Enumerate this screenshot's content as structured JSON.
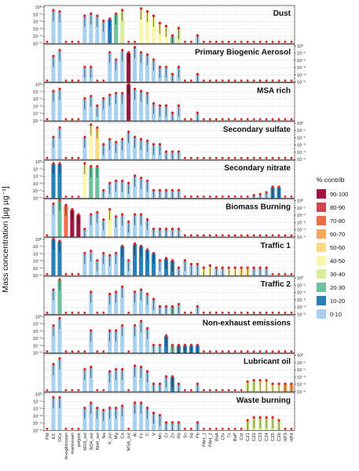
{
  "chart_data": {
    "type": "bar",
    "ylabel": "Mass concentration [µg µg⁻¹]",
    "yscale": "log",
    "ylim": [
      1e-05,
      1
    ],
    "y_ticks": [
      "10⁻⁵",
      "10⁻⁴",
      "10⁻³",
      "10⁻²",
      "10⁻¹",
      "10⁰"
    ],
    "categories": [
      "PM",
      "EC",
      "OCx",
      "levoglucosan",
      "mannosan",
      "polyols",
      "NO3_sol",
      "SO4_sol",
      "NH4_sol",
      "Na",
      "K_sol",
      "Mg",
      "Ca",
      "MSA_sol",
      "Al",
      "Fe",
      "Ti",
      "V",
      "Mn",
      "Cr",
      "Zn",
      "Rb",
      "Sn",
      "Sb",
      "Pb",
      "PAH_1",
      "PAH_2",
      "BaA",
      "Chr",
      "Tri",
      "BaP",
      "Cor",
      "C21",
      "C22",
      "C23",
      "C24",
      "C25",
      "C26",
      "HP3",
      "HP4"
    ],
    "x_tick_labels_shown": [
      "PM",
      "EC",
      "OCx",
      "levoglucosan",
      "mannosan",
      "polyols",
      "NO3_sol",
      "SO4_sol",
      "NH4_sol",
      "Na",
      "K_sol",
      "Mg",
      "Ca",
      "MSA_sol",
      "Al",
      "Fe",
      "Ti",
      "V",
      "Mn",
      "Cr",
      "Zn",
      "Rb",
      "Sn",
      "Sb",
      "Pb",
      "PAH_1",
      "PAH_2",
      "BaA",
      "Chr",
      "Tri",
      "BaP",
      "Cor",
      "C21",
      "C22",
      "C23",
      "C24",
      "C25",
      "C26",
      "HP3",
      "HP4"
    ],
    "legend": {
      "title": "% contrib",
      "position": "right",
      "items": [
        {
          "label": "90-100",
          "color": "#a2123f"
        },
        {
          "label": "80-90",
          "color": "#d6404c"
        },
        {
          "label": "70-80",
          "color": "#f26d48"
        },
        {
          "label": "60-70",
          "color": "#fba85e"
        },
        {
          "label": "50-60",
          "color": "#fdd98a"
        },
        {
          "label": "40-50",
          "color": "#fbf6ae"
        },
        {
          "label": "30-40",
          "color": "#d9ee9b"
        },
        {
          "label": "20-30",
          "color": "#6cc39c"
        },
        {
          "label": "10-20",
          "color": "#2a7fb6"
        },
        {
          "label": "0-10",
          "color": "#a6d1ef"
        }
      ]
    },
    "panels": [
      {
        "title": "Dust",
        "y_axis_side": "left",
        "values": [
          0,
          0.3,
          0.2,
          1e-05,
          1e-05,
          1e-05,
          0.05,
          0.1,
          0.05,
          0.01,
          0.02,
          0.1,
          0.3,
          1e-05,
          1e-05,
          0.5,
          0.2,
          0.05,
          0.005,
          0.002,
          0.0001,
          0.001,
          1e-05,
          1e-05,
          0.0001,
          1e-05,
          1e-05,
          1e-05,
          1e-05,
          1e-05,
          1e-05,
          1e-05,
          1e-05,
          1e-05,
          1e-05,
          1e-05,
          1e-05,
          1e-05,
          1e-05,
          1e-05
        ],
        "contrib": [
          9,
          9,
          9,
          9,
          9,
          9,
          9,
          9,
          9,
          9,
          8,
          7,
          6,
          9,
          9,
          5,
          5,
          5,
          5,
          5,
          7,
          6,
          9,
          9,
          9,
          9,
          9,
          9,
          9,
          9,
          9,
          9,
          9,
          9,
          9,
          9,
          9,
          9,
          9,
          9
        ]
      },
      {
        "title": "Primary Biogenic Aerosol",
        "y_axis_side": "right",
        "values": [
          0,
          0.03,
          0.2,
          1e-05,
          1e-05,
          1e-05,
          0.001,
          0.001,
          1e-05,
          1e-05,
          0.1,
          0.01,
          0.2,
          0.1,
          0.5,
          0.1,
          0.05,
          0.01,
          0.001,
          0.001,
          0.0001,
          0.001,
          1e-05,
          1e-05,
          0.0001,
          1e-05,
          1e-05,
          1e-05,
          1e-05,
          1e-05,
          1e-05,
          1e-05,
          1e-05,
          1e-05,
          1e-05,
          1e-05,
          1e-05,
          1e-05,
          1e-05,
          1e-05
        ],
        "contrib": [
          9,
          9,
          9,
          9,
          9,
          0,
          9,
          9,
          9,
          9,
          9,
          9,
          9,
          0,
          9,
          9,
          9,
          9,
          9,
          9,
          9,
          9,
          9,
          9,
          9,
          9,
          9,
          9,
          9,
          9,
          9,
          9,
          9,
          9,
          9,
          9,
          9,
          9,
          9,
          9
        ]
      },
      {
        "title": "MSA rich",
        "y_axis_side": "left",
        "values": [
          0,
          0.1,
          0.2,
          1e-05,
          1e-05,
          1e-05,
          0.01,
          0.02,
          0.001,
          0.01,
          0.03,
          0.05,
          0.05,
          1,
          0.2,
          0.1,
          0.05,
          0.002,
          0.001,
          0.001,
          0.0001,
          0.001,
          1e-05,
          1e-05,
          0.0001,
          1e-05,
          1e-05,
          1e-05,
          1e-05,
          1e-05,
          1e-05,
          1e-05,
          1e-05,
          1e-05,
          1e-05,
          1e-05,
          1e-05,
          1e-05,
          1e-05,
          1e-05
        ],
        "contrib": [
          9,
          9,
          9,
          9,
          9,
          9,
          9,
          9,
          9,
          9,
          9,
          9,
          9,
          0,
          9,
          9,
          9,
          9,
          9,
          9,
          9,
          9,
          9,
          9,
          9,
          9,
          9,
          9,
          9,
          9,
          9,
          9,
          9,
          9,
          9,
          9,
          9,
          9,
          9,
          9
        ]
      },
      {
        "title": "Secondary sulfate",
        "y_axis_side": "right",
        "values": [
          0,
          0.01,
          0.2,
          1e-05,
          1e-05,
          1e-05,
          0.01,
          0.5,
          0.2,
          0.001,
          0.005,
          0.002,
          0.005,
          0.05,
          0.01,
          0.005,
          0.003,
          0.001,
          0.001,
          0.0001,
          0.0001,
          0.0001,
          1e-05,
          1e-05,
          1e-05,
          1e-05,
          1e-05,
          1e-05,
          1e-05,
          1e-05,
          1e-05,
          1e-05,
          1e-05,
          1e-05,
          1e-05,
          1e-05,
          1e-05,
          1e-05,
          1e-05,
          1e-05
        ],
        "contrib": [
          9,
          9,
          9,
          9,
          9,
          9,
          9,
          5,
          4,
          9,
          9,
          9,
          9,
          9,
          9,
          9,
          9,
          9,
          9,
          9,
          9,
          9,
          9,
          9,
          9,
          9,
          9,
          9,
          9,
          9,
          9,
          9,
          9,
          9,
          9,
          9,
          9,
          9,
          9,
          9
        ]
      },
      {
        "title": "Secondary nitrate",
        "y_axis_side": "left",
        "values": [
          0,
          0.5,
          0.5,
          1e-05,
          1e-05,
          1e-05,
          0.5,
          0.2,
          0.2,
          0.0001,
          0.001,
          0.002,
          0.002,
          0.001,
          0.01,
          0.005,
          0.002,
          0.0001,
          0.0001,
          0.0001,
          0.0001,
          0.0001,
          1e-05,
          1e-05,
          1e-05,
          1e-05,
          1e-05,
          1e-05,
          1e-05,
          1e-05,
          1e-05,
          1e-05,
          1e-05,
          2e-05,
          3e-05,
          5e-05,
          0.0003,
          0.0003,
          1e-05,
          1e-05
        ],
        "contrib": [
          9,
          8,
          8,
          9,
          9,
          9,
          5,
          7,
          7,
          9,
          9,
          9,
          9,
          9,
          9,
          9,
          9,
          9,
          9,
          9,
          9,
          9,
          9,
          9,
          9,
          9,
          9,
          9,
          9,
          9,
          9,
          9,
          9,
          9,
          9,
          9,
          8,
          8,
          9,
          9
        ]
      },
      {
        "title": "Biomass Burning",
        "y_axis_side": "right",
        "values": [
          0,
          0.3,
          1,
          0.2,
          0.05,
          0.01,
          0.0001,
          0.01,
          0.02,
          0.002,
          0.05,
          0.005,
          0.01,
          0.001,
          0.01,
          0.01,
          0.002,
          0.0001,
          0.0001,
          0.0001,
          0.0001,
          0.0001,
          1e-05,
          1e-05,
          1e-05,
          1e-05,
          1e-05,
          1e-05,
          1e-05,
          1e-05,
          1e-05,
          1e-05,
          1e-05,
          1e-05,
          1e-05,
          1e-05,
          1e-05,
          1e-05,
          1e-05,
          1e-05
        ],
        "contrib": [
          9,
          9,
          7,
          2,
          0,
          0,
          9,
          9,
          9,
          9,
          5,
          9,
          9,
          9,
          9,
          9,
          9,
          9,
          9,
          9,
          9,
          9,
          9,
          9,
          9,
          9,
          9,
          9,
          9,
          9,
          9,
          9,
          9,
          9,
          9,
          9,
          9,
          9,
          9,
          9
        ]
      },
      {
        "title": "Traffic 1",
        "y_axis_side": "left",
        "values": [
          0,
          1,
          0.5,
          1e-05,
          1e-05,
          1e-05,
          0.01,
          0.02,
          0.001,
          0.01,
          0.005,
          0.01,
          0.1,
          0.001,
          0.2,
          0.1,
          0.03,
          0.01,
          0.001,
          0.002,
          0.001,
          0.0001,
          0.001,
          0.0003,
          0.0003,
          0.0001,
          0.0002,
          0.0001,
          0.0001,
          0.0001,
          0.0001,
          0.0001,
          0.0001,
          0.0001,
          0.0001,
          0.0001,
          1e-05,
          1e-05,
          1e-05,
          1e-05
        ],
        "contrib": [
          8,
          8,
          8,
          9,
          9,
          9,
          9,
          9,
          9,
          9,
          9,
          9,
          8,
          9,
          8,
          8,
          8,
          8,
          9,
          8,
          8,
          9,
          9,
          9,
          9,
          5,
          5,
          9,
          9,
          5,
          5,
          4,
          4,
          9,
          9,
          9,
          9,
          9,
          9,
          9
        ]
      },
      {
        "title": "Traffic 2",
        "y_axis_side": "right",
        "values": [
          0,
          0.02,
          0.5,
          1e-05,
          1e-05,
          1e-05,
          1e-05,
          0.01,
          1e-05,
          1e-05,
          0.005,
          0.01,
          0.05,
          1e-05,
          0.01,
          0.02,
          0.005,
          0.001,
          0.0001,
          0.0001,
          0.0001,
          0.0002,
          1e-05,
          1e-05,
          0.0001,
          1e-05,
          1e-05,
          1e-05,
          1e-05,
          1e-05,
          1e-05,
          1e-05,
          1e-05,
          1e-05,
          1e-05,
          1e-05,
          1e-05,
          1e-05,
          1e-05,
          1e-05
        ],
        "contrib": [
          9,
          9,
          7,
          9,
          9,
          9,
          9,
          9,
          9,
          9,
          9,
          9,
          9,
          9,
          9,
          9,
          9,
          9,
          9,
          9,
          7,
          9,
          9,
          9,
          9,
          9,
          9,
          9,
          9,
          9,
          9,
          9,
          9,
          9,
          9,
          9,
          9,
          9,
          9,
          9
        ]
      },
      {
        "title": "Non-exhaust emissions",
        "y_axis_side": "left",
        "values": [
          0,
          0.05,
          0.5,
          1e-05,
          1e-05,
          1e-05,
          1e-05,
          0.01,
          1e-05,
          1e-05,
          0.01,
          0.01,
          0.05,
          1e-05,
          0.05,
          0.2,
          0.02,
          0.0001,
          0.0001,
          0.002,
          0.0001,
          0.0001,
          0.0001,
          0.0001,
          0.0001,
          1e-05,
          1e-05,
          1e-05,
          1e-05,
          1e-05,
          1e-05,
          1e-05,
          1e-05,
          1e-05,
          1e-05,
          1e-05,
          1e-05,
          1e-05,
          1e-05,
          1e-05
        ],
        "contrib": [
          9,
          9,
          9,
          9,
          9,
          9,
          9,
          9,
          9,
          9,
          9,
          9,
          9,
          9,
          9,
          9,
          9,
          9,
          9,
          8,
          7,
          8,
          8,
          8,
          8,
          9,
          9,
          9,
          9,
          9,
          9,
          9,
          9,
          9,
          9,
          9,
          9,
          9,
          9,
          9
        ]
      },
      {
        "title": "Lubricant oil",
        "y_axis_side": "right",
        "values": [
          0,
          0.05,
          0.3,
          1e-05,
          1e-05,
          1e-05,
          0.01,
          0.02,
          1e-05,
          1e-05,
          0.005,
          0.01,
          0.01,
          1e-05,
          0.03,
          0.02,
          0.005,
          0.0001,
          0.0001,
          0.001,
          0.001,
          0.0001,
          1e-05,
          1e-05,
          0.0001,
          1e-05,
          1e-05,
          1e-05,
          1e-05,
          1e-05,
          1e-05,
          1e-05,
          0.0002,
          0.0003,
          0.0003,
          0.0003,
          0.0001,
          0.0001,
          0.0001,
          0.0001
        ],
        "contrib": [
          9,
          9,
          9,
          9,
          9,
          9,
          9,
          9,
          9,
          9,
          9,
          9,
          9,
          9,
          9,
          9,
          9,
          9,
          9,
          9,
          8,
          9,
          9,
          9,
          9,
          9,
          9,
          9,
          9,
          9,
          9,
          9,
          6,
          6,
          5,
          5,
          5,
          5,
          3,
          3
        ]
      },
      {
        "title": "Waste burning",
        "y_axis_side": "left",
        "values": [
          0,
          0.3,
          0.3,
          1e-05,
          1e-05,
          1e-05,
          0.01,
          0.05,
          0.01,
          0.005,
          0.01,
          0.01,
          0.02,
          1e-05,
          0.05,
          0.05,
          0.01,
          0.002,
          0.001,
          0.0001,
          0.0001,
          0.0001,
          1e-05,
          1e-05,
          0.0001,
          1e-05,
          1e-05,
          1e-05,
          1e-05,
          1e-05,
          1e-05,
          1e-05,
          0.0002,
          0.0005,
          0.0005,
          0.0005,
          0.0005,
          0.0002,
          1e-05,
          1e-05
        ],
        "contrib": [
          9,
          9,
          9,
          9,
          9,
          9,
          9,
          9,
          9,
          9,
          9,
          9,
          9,
          9,
          9,
          9,
          9,
          9,
          9,
          9,
          9,
          9,
          9,
          9,
          9,
          9,
          9,
          9,
          9,
          9,
          9,
          9,
          6,
          6,
          6,
          6,
          6,
          6,
          9,
          9
        ]
      }
    ]
  }
}
